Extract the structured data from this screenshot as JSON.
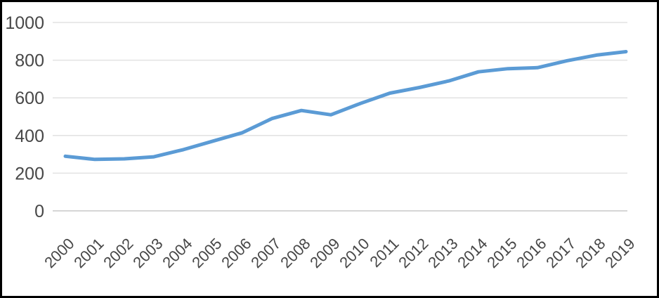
{
  "chart_data": {
    "type": "line",
    "title": "",
    "categories": [
      "2000",
      "2001",
      "2002",
      "2003",
      "2004",
      "2005",
      "2006",
      "2007",
      "2008",
      "2009",
      "2010",
      "2011",
      "2012",
      "2013",
      "2014",
      "2015",
      "2016",
      "2017",
      "2018",
      "2019"
    ],
    "values": [
      290,
      273,
      276,
      287,
      325,
      370,
      415,
      490,
      533,
      510,
      570,
      625,
      655,
      690,
      738,
      755,
      760,
      797,
      827,
      845
    ],
    "xlabel": "",
    "ylabel": "",
    "ylim": [
      0,
      1000
    ],
    "yticks": [
      0,
      200,
      400,
      600,
      800,
      1000
    ],
    "grid": "horizontal",
    "legend_position": "none",
    "x_label_rotation_deg": -45
  },
  "colors": {
    "line": "#5b9bd5",
    "gridline": "#e2e2e2",
    "zero_gridline": "#c9c9c9",
    "tick_label": "#474747",
    "background": "#ffffff",
    "frame_border": "#000000"
  }
}
